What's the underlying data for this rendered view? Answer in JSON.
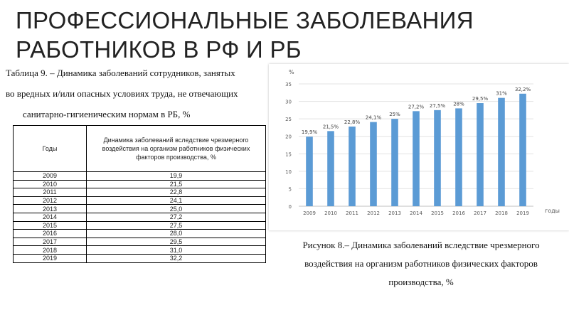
{
  "title": {
    "line1": "ПРОФЕССИОНАЛЬНЫЕ ЗАБОЛЕВАНИЯ",
    "line2": "РАБОТНИКОВ В РФ И РБ"
  },
  "table_caption": {
    "line1": "Таблица 9. – Динамика заболеваний сотрудников, занятых",
    "line2": "во вредных и/или опасных условиях труда, не отвечающих",
    "line3": "санитарно-гигиеническим нормам в РБ, %"
  },
  "table": {
    "header_year": "Годы",
    "header_value": "Динамика заболеваний вследствие чрезмерного воздействия на организм работников физических факторов производства, %",
    "rows": [
      {
        "year": "2009",
        "value": "19,9"
      },
      {
        "year": "2010",
        "value": "21,5"
      },
      {
        "year": "2011",
        "value": "22,8"
      },
      {
        "year": "2012",
        "value": "24,1"
      },
      {
        "year": "2013",
        "value": "25,0"
      },
      {
        "year": "2014",
        "value": "27,2"
      },
      {
        "year": "2015",
        "value": "27,5"
      },
      {
        "year": "2016",
        "value": "28,0"
      },
      {
        "year": "2017",
        "value": "29,5"
      },
      {
        "year": "2018",
        "value": "31,0"
      },
      {
        "year": "2019",
        "value": "32,2"
      }
    ]
  },
  "chart_data": {
    "type": "bar",
    "categories": [
      "2009",
      "2010",
      "2011",
      "2012",
      "2013",
      "2014",
      "2015",
      "2016",
      "2017",
      "2018",
      "2019"
    ],
    "values": [
      19.9,
      21.5,
      22.8,
      24.1,
      25,
      27.2,
      27.5,
      28,
      29.5,
      31,
      32.2
    ],
    "data_labels": [
      "19,9%",
      "21,5%",
      "22,8%",
      "24,1%",
      "25%",
      "27,2%",
      "27,5%",
      "28%",
      "29,5%",
      "31%",
      "32,2%"
    ],
    "title": "",
    "xlabel": "годы",
    "ylabel": "%",
    "ylim": [
      0,
      35
    ],
    "yticks": [
      0,
      5,
      10,
      15,
      20,
      25,
      30,
      35
    ],
    "grid": true,
    "bar_color": "#5b9bd5"
  },
  "figure_caption": {
    "line1": "Рисунок 8.– Динамика заболеваний вследствие чрезмерного",
    "line2": "воздействия на организм работников физических факторов",
    "line3": "производства, %"
  }
}
